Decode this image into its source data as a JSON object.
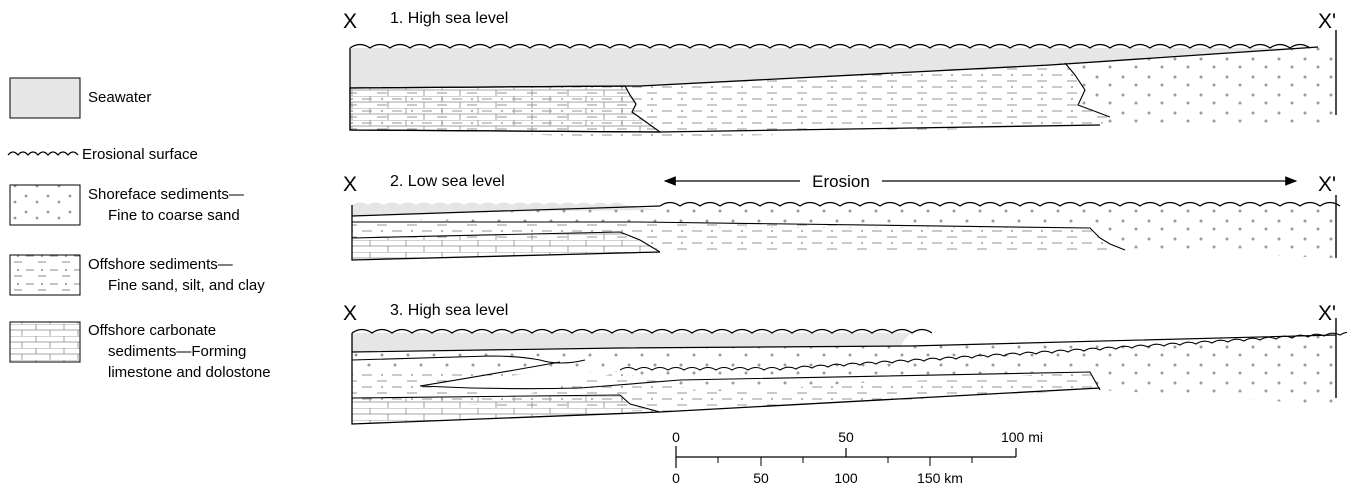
{
  "legend": {
    "seawater": "Seawater",
    "erosional": "Erosional surface",
    "shoreface_1": "Shoreface sediments—",
    "shoreface_2": "Fine to coarse sand",
    "offshore_1": "Offshore  sediments—",
    "offshore_2": "Fine sand, silt, and clay",
    "carbonate_1": "Offshore carbonate",
    "carbonate_2": "sediments—Forming",
    "carbonate_3": "limestone and dolostone"
  },
  "panels": [
    {
      "title": "1.  High sea level",
      "left_label": "X",
      "right_label": "X'"
    },
    {
      "title": "2.  Low sea level",
      "left_label": "X",
      "right_label": "X'",
      "arrow_label": "Erosion"
    },
    {
      "title": "3.  High sea level",
      "left_label": "X",
      "right_label": "X'"
    }
  ],
  "scale": {
    "mi_ticks": [
      "0",
      "50",
      "100 mi"
    ],
    "km_ticks": [
      "0",
      "50",
      "100",
      "150 km"
    ]
  },
  "colors": {
    "seawater": "#e6e6e6",
    "dots": "#9a9a9a",
    "line": "#000000",
    "dash": "#8a8a8a"
  }
}
